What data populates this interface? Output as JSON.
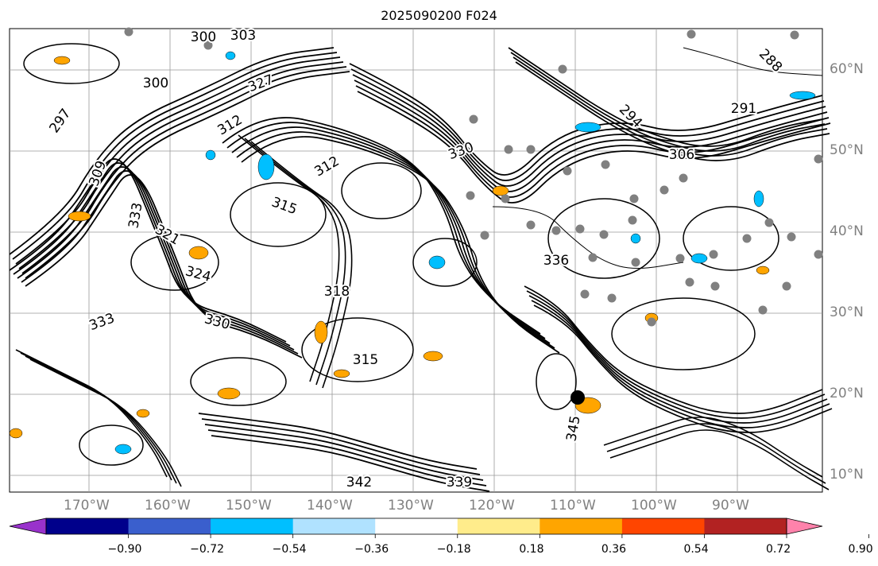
{
  "title": "2025090200 F024",
  "lat_labels": [
    "60°N",
    "50°N",
    "40°N",
    "30°N",
    "20°N",
    "10°N"
  ],
  "lon_labels": [
    "170°W",
    "160°W",
    "150°W",
    "140°W",
    "130°W",
    "120°W",
    "110°W",
    "100°W",
    "90°W"
  ],
  "colorbar": {
    "ticks": [
      "−0.90",
      "−0.72",
      "−0.54",
      "−0.36",
      "−0.18",
      "0.18",
      "0.36",
      "0.54",
      "0.72",
      "0.90"
    ],
    "colors": [
      "#9932cc",
      "#00008b",
      "#3a5fcd",
      "#00bfff",
      "#b0e2ff",
      "#ffffff",
      "#ffec8b",
      "#ffa500",
      "#ff4500",
      "#b22222",
      "#ff82ab"
    ]
  },
  "contour_labels": [
    {
      "text": "300"
    },
    {
      "text": "303"
    },
    {
      "text": "297"
    },
    {
      "text": "309"
    },
    {
      "text": "300"
    },
    {
      "text": "312"
    },
    {
      "text": "315"
    },
    {
      "text": "318"
    },
    {
      "text": "321"
    },
    {
      "text": "324"
    },
    {
      "text": "330"
    },
    {
      "text": "333"
    },
    {
      "text": "336"
    },
    {
      "text": "339"
    },
    {
      "text": "342"
    },
    {
      "text": "345"
    },
    {
      "text": "291"
    },
    {
      "text": "294"
    },
    {
      "text": "306"
    },
    {
      "text": "288"
    },
    {
      "text": "327"
    },
    {
      "text": "330"
    },
    {
      "text": "312"
    },
    {
      "text": "315"
    },
    {
      "text": "333"
    }
  ]
}
